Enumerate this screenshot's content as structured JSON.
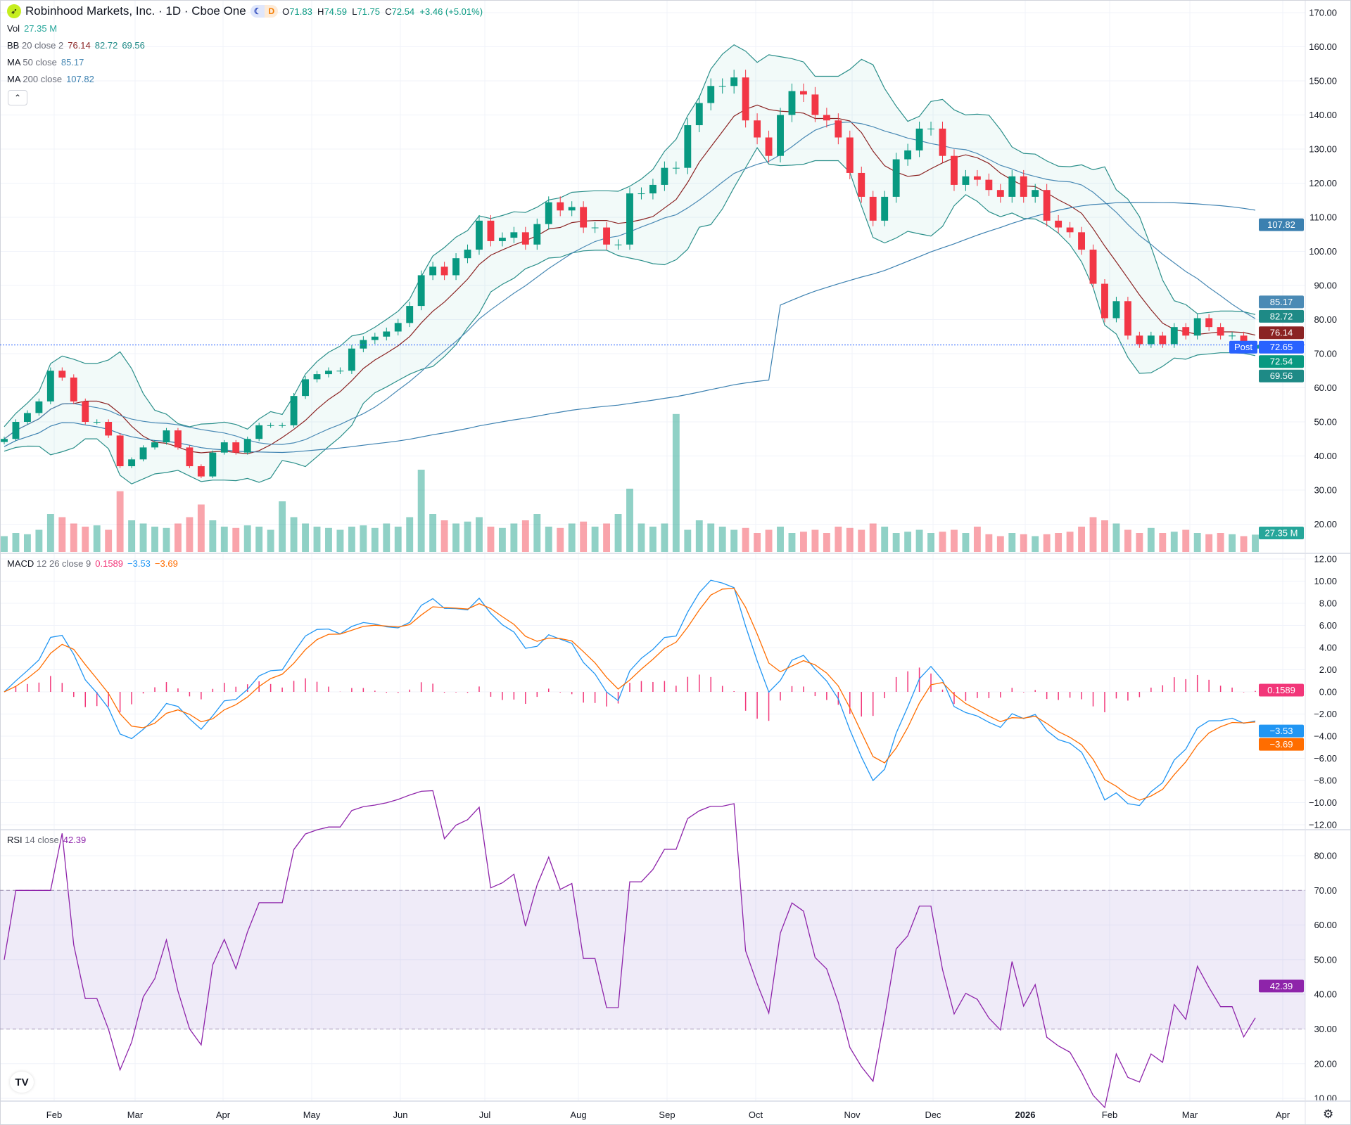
{
  "header": {
    "title": "Robinhood Markets, Inc. · 1D · Cboe One",
    "session_badges": [
      "☾",
      "D"
    ],
    "open_label": "O",
    "open": "71.83",
    "high_label": "H",
    "high": "74.59",
    "low_label": "L",
    "low": "71.75",
    "close_label": "C",
    "close": "72.54",
    "change": "+3.46 (+5.01%)"
  },
  "legends": {
    "vol": {
      "name": "Vol",
      "value": "27.35 M"
    },
    "bb": {
      "name": "BB",
      "params": "20 close 2",
      "basis": "76.14",
      "upper": "82.72",
      "lower": "69.56"
    },
    "ma50": {
      "name": "MA",
      "params": "50 close",
      "value": "85.17"
    },
    "ma200": {
      "name": "MA",
      "params": "200 close",
      "value": "107.82"
    },
    "macd": {
      "name": "MACD",
      "params": "12 26 close 9",
      "hist": "0.1589",
      "macd": "−3.53",
      "signal": "−3.69"
    },
    "rsi": {
      "name": "RSI",
      "params": "14 close",
      "value": "42.39"
    }
  },
  "collapse_icon": "chevron-up-icon",
  "colors": {
    "up": "#089981",
    "down": "#f23645",
    "bb": "#2a8f8a",
    "bb_basis": "#8b2323",
    "ma50": "#4a8ab5",
    "ma200": "#3b80b0",
    "macd": "#2196f3",
    "signal": "#ff6d00",
    "hist": "#f23679",
    "rsi": "#8e24aa",
    "post": "#2962ff"
  },
  "price_badges": [
    {
      "label": "",
      "value": "107.82",
      "color": "#3b80b0"
    },
    {
      "label": "",
      "value": "85.17",
      "color": "#4a8ab5"
    },
    {
      "label": "",
      "value": "82.72",
      "color": "#1e8a86"
    },
    {
      "label": "",
      "value": "76.14",
      "color": "#8b2323"
    },
    {
      "label": "Post",
      "value": "72.65",
      "color": "#2962ff"
    },
    {
      "label": "",
      "value": "72.54",
      "color": "#089981"
    },
    {
      "label": "",
      "value": "69.56",
      "color": "#1e8a86"
    }
  ],
  "volume_badge": {
    "value": "27.35 M",
    "color": "#26a69a"
  },
  "macd_badges": [
    {
      "value": "0.1589",
      "color": "#f23679"
    },
    {
      "value": "−3.53",
      "color": "#2196f3"
    },
    {
      "value": "−3.69",
      "color": "#ff6d00"
    }
  ],
  "rsi_badge": {
    "value": "42.39",
    "color": "#8e24aa"
  },
  "chart_data": {
    "type": "candlestick",
    "price_axis": {
      "ticks": [
        "170.00",
        "160.00",
        "150.00",
        "140.00",
        "130.00",
        "120.00",
        "110.00",
        "100.00",
        "90.00",
        "80.00",
        "70.00",
        "60.00",
        "50.00",
        "40.00",
        "30.00",
        "20.00"
      ],
      "range": [
        20,
        170
      ]
    },
    "time_axis": {
      "ticks": [
        "Feb",
        "Mar",
        "Apr",
        "May",
        "Jun",
        "Jul",
        "Aug",
        "Sep",
        "Oct",
        "Nov",
        "Dec",
        "2026",
        "Feb",
        "Mar",
        "Apr"
      ]
    },
    "closes": [
      45,
      50,
      52.6,
      56,
      65,
      63,
      56,
      50,
      50,
      46,
      37,
      39,
      42.5,
      44,
      47.5,
      42.5,
      37,
      34,
      41,
      44,
      41,
      45,
      49,
      49,
      49,
      57.6,
      62.5,
      64,
      65,
      65,
      71.5,
      74,
      75,
      76.5,
      79,
      84,
      93,
      95.5,
      93,
      98,
      100.5,
      109,
      103,
      104,
      105.6,
      102,
      108,
      114.4,
      112,
      113,
      107,
      107,
      102,
      102,
      117,
      117,
      119.5,
      124.5,
      124.5,
      137,
      143.5,
      148.5,
      148.5,
      151,
      138.4,
      133.4,
      128,
      140,
      147,
      146,
      140,
      138.4,
      133.4,
      123,
      116,
      109,
      116,
      127,
      129.6,
      136,
      136,
      128,
      119.5,
      122,
      121,
      118,
      116,
      122,
      116,
      118,
      109,
      107,
      105.6,
      100.5,
      90.5,
      80.4,
      85.4,
      75.3,
      72.8,
      75.3,
      72.8,
      77.8,
      75.3,
      80.4,
      77.8,
      75.3,
      75.3,
      71.5,
      72.54
    ],
    "volumes_m": [
      25,
      30,
      28,
      35,
      60,
      55,
      45,
      40,
      42,
      35,
      96,
      50,
      45,
      40,
      38,
      45,
      55,
      75,
      50,
      40,
      38,
      42,
      40,
      35,
      80,
      55,
      45,
      40,
      38,
      35,
      40,
      42,
      38,
      45,
      40,
      55,
      130,
      60,
      50,
      45,
      48,
      55,
      40,
      38,
      45,
      50,
      60,
      40,
      38,
      45,
      48,
      40,
      45,
      60,
      100,
      45,
      40,
      45,
      218,
      35,
      50,
      45,
      40,
      35,
      38,
      30,
      35,
      40,
      30,
      32,
      35,
      30,
      40,
      38,
      35,
      45,
      40,
      30,
      32,
      35,
      30,
      32,
      35,
      30,
      40,
      28,
      25,
      30,
      28,
      25,
      28,
      30,
      32,
      40,
      55,
      50,
      45,
      35,
      30,
      38,
      30,
      32,
      35,
      30,
      28,
      30,
      28,
      25,
      27.35
    ],
    "macd_axis": {
      "ticks": [
        "12.00",
        "10.00",
        "8.00",
        "6.00",
        "4.00",
        "2.00",
        "0.00",
        "−2.00",
        "−4.00",
        "−6.00",
        "−8.00",
        "−10.00",
        "−12.00"
      ],
      "range": [
        -12,
        12
      ]
    },
    "rsi_axis": {
      "ticks": [
        "80.00",
        "70.00",
        "60.00",
        "50.00",
        "40.00",
        "30.00",
        "20.00",
        "10.00"
      ],
      "range": [
        10,
        80
      ],
      "bands": [
        30,
        70
      ]
    }
  }
}
